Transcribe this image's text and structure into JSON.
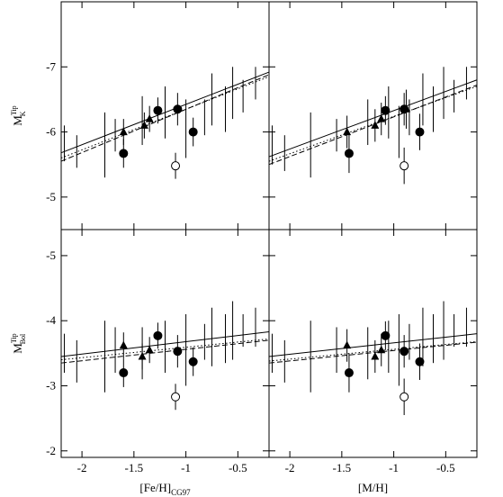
{
  "chart_data": [
    {
      "type": "scatter",
      "ylabel": {
        "text": "M",
        "sub": "K",
        "sup": "Tip"
      },
      "xlim": [
        -2.2,
        -0.2
      ],
      "ylim": [
        -4.5,
        -8
      ],
      "xticks": [
        -2,
        -1.5,
        -1,
        -0.5
      ],
      "yticks": [
        -7,
        -6,
        -5
      ],
      "points": {
        "filled": {
          "x": [
            -1.6,
            -1.27,
            -1.08,
            -0.93
          ],
          "values": [
            -5.67,
            -6.33,
            -6.35,
            -6.0
          ],
          "errors": [
            0.22,
            0.2,
            0.25,
            0.22
          ]
        },
        "open": {
          "x": [
            -1.1
          ],
          "values": [
            -5.48
          ],
          "errors": [
            0.2
          ]
        },
        "triangles": {
          "x": [
            -1.6,
            -1.4,
            -1.35
          ],
          "values": [
            -6.0,
            -6.1,
            -6.2
          ],
          "errors": [
            0.2,
            0.2,
            0.2
          ]
        }
      },
      "bars": {
        "x": [
          -2.17,
          -2.05,
          -1.78,
          -1.68,
          -1.42,
          -1.2,
          -1.0,
          -0.82,
          -0.75,
          -0.62,
          -0.55,
          -0.45,
          -0.33
        ],
        "low": [
          -6.1,
          -5.95,
          -6.3,
          -6.2,
          -6.55,
          -6.7,
          -6.5,
          -6.5,
          -6.9,
          -6.7,
          -7.0,
          -6.8,
          -7.0
        ],
        "high": [
          -5.55,
          -5.45,
          -5.3,
          -5.7,
          -5.8,
          -5.9,
          -5.6,
          -5.95,
          -6.1,
          -6.0,
          -6.2,
          -6.3,
          -6.5
        ]
      },
      "lines": [
        {
          "style": "solid",
          "x": [
            -2.2,
            -0.2
          ],
          "values": [
            -5.68,
            -6.92
          ]
        },
        {
          "style": "dashed",
          "x": [
            -2.2,
            -0.2
          ],
          "values": [
            -5.55,
            -6.88
          ]
        },
        {
          "style": "dotted",
          "x": [
            -2.2,
            -0.2
          ],
          "values": [
            -5.6,
            -6.85
          ]
        }
      ]
    },
    {
      "type": "scatter",
      "xlim": [
        -2.2,
        -0.2
      ],
      "ylim": [
        -4.5,
        -8
      ],
      "xticks": [
        -2,
        -1.5,
        -1,
        -0.5
      ],
      "yticks": [
        -7,
        -6,
        -5
      ],
      "points": {
        "filled": {
          "x": [
            -1.43,
            -1.08,
            -0.9,
            -0.75
          ],
          "values": [
            -5.67,
            -6.33,
            -6.35,
            -6.0
          ],
          "errors": [
            0.3,
            0.22,
            0.25,
            0.28
          ]
        },
        "open": {
          "x": [
            -0.9
          ],
          "values": [
            -5.48
          ],
          "errors": [
            0.28
          ]
        },
        "triangles": {
          "x": [
            -1.45,
            -1.18,
            -1.12,
            -0.88
          ],
          "values": [
            -6.0,
            -6.1,
            -6.2,
            -6.35
          ],
          "errors": [
            0.25,
            0.25,
            0.25,
            0.3
          ]
        }
      },
      "bars": {
        "x": [
          -2.17,
          -2.05,
          -1.8,
          -1.55,
          -1.25,
          -1.05,
          -0.95,
          -0.85,
          -0.72,
          -0.62,
          -0.52,
          -0.42,
          -0.3
        ],
        "low": [
          -6.1,
          -5.95,
          -6.3,
          -6.2,
          -6.5,
          -6.7,
          -6.4,
          -6.5,
          -6.9,
          -6.7,
          -7.0,
          -6.8,
          -7.0
        ],
        "high": [
          -5.5,
          -5.4,
          -5.3,
          -5.7,
          -5.8,
          -5.9,
          -5.6,
          -5.95,
          -6.1,
          -6.0,
          -6.2,
          -6.3,
          -6.5
        ]
      },
      "lines": [
        {
          "style": "solid",
          "x": [
            -2.2,
            -0.2
          ],
          "values": [
            -5.62,
            -6.8
          ]
        },
        {
          "style": "dashed",
          "x": [
            -2.2,
            -0.2
          ],
          "values": [
            -5.5,
            -6.72
          ]
        },
        {
          "style": "dotted",
          "x": [
            -2.2,
            -0.2
          ],
          "values": [
            -5.55,
            -6.7
          ]
        }
      ]
    },
    {
      "type": "scatter",
      "xlabel": {
        "text": "[Fe/H]",
        "sub": "CG97"
      },
      "ylabel": {
        "text": "M",
        "sub": "Bol",
        "sup": "Tip"
      },
      "xlim": [
        -2.2,
        -0.2
      ],
      "ylim": [
        -1.9,
        -5.4
      ],
      "xticks": [
        -2,
        -1.5,
        -1,
        -0.5
      ],
      "yticks": [
        -5,
        -4,
        -3,
        -2
      ],
      "points": {
        "filled": {
          "x": [
            -1.6,
            -1.27,
            -1.08,
            -0.93
          ],
          "values": [
            -3.2,
            -3.77,
            -3.53,
            -3.37
          ],
          "errors": [
            0.22,
            0.2,
            0.25,
            0.22
          ]
        },
        "open": {
          "x": [
            -1.1
          ],
          "values": [
            -2.83
          ],
          "errors": [
            0.2
          ]
        },
        "triangles": {
          "x": [
            -1.6,
            -1.42,
            -1.35
          ],
          "values": [
            -3.62,
            -3.45,
            -3.55
          ],
          "errors": [
            0.2,
            0.2,
            0.2
          ]
        }
      },
      "bars": {
        "x": [
          -2.17,
          -2.05,
          -1.78,
          -1.68,
          -1.42,
          -1.2,
          -1.0,
          -0.82,
          -0.75,
          -0.62,
          -0.55,
          -0.45,
          -0.33
        ],
        "low": [
          -3.8,
          -3.7,
          -4.0,
          -3.9,
          -3.9,
          -4.0,
          -4.1,
          -3.95,
          -4.2,
          -4.1,
          -4.3,
          -4.1,
          -4.2
        ],
        "high": [
          -3.2,
          -3.05,
          -2.9,
          -3.2,
          -3.1,
          -3.2,
          -3.0,
          -3.4,
          -3.3,
          -3.35,
          -3.4,
          -3.6,
          -3.6
        ]
      },
      "lines": [
        {
          "style": "solid",
          "x": [
            -2.2,
            -0.2
          ],
          "values": [
            -3.45,
            -3.83
          ]
        },
        {
          "style": "dashed",
          "x": [
            -2.2,
            -0.2
          ],
          "values": [
            -3.35,
            -3.7
          ]
        },
        {
          "style": "dotted",
          "x": [
            -2.2,
            -0.2
          ],
          "values": [
            -3.4,
            -3.72
          ]
        }
      ]
    },
    {
      "type": "scatter",
      "xlabel": {
        "text": "[M/H]"
      },
      "xlim": [
        -2.2,
        -0.2
      ],
      "ylim": [
        -1.9,
        -5.4
      ],
      "xticks": [
        -2,
        -1.5,
        -1,
        -0.5
      ],
      "yticks": [
        -5,
        -4,
        -3,
        -2
      ],
      "points": {
        "filled": {
          "x": [
            -1.43,
            -1.08,
            -0.9,
            -0.75
          ],
          "values": [
            -3.2,
            -3.77,
            -3.53,
            -3.37
          ],
          "errors": [
            0.3,
            0.22,
            0.25,
            0.28
          ]
        },
        "open": {
          "x": [
            -0.9
          ],
          "values": [
            -2.83
          ],
          "errors": [
            0.28
          ]
        },
        "triangles": {
          "x": [
            -1.45,
            -1.18,
            -1.12
          ],
          "values": [
            -3.62,
            -3.45,
            -3.55
          ],
          "errors": [
            0.25,
            0.25,
            0.25
          ]
        }
      },
      "bars": {
        "x": [
          -2.17,
          -2.05,
          -1.8,
          -1.55,
          -1.25,
          -1.05,
          -0.95,
          -0.85,
          -0.72,
          -0.62,
          -0.52,
          -0.42,
          -0.3
        ],
        "low": [
          -3.8,
          -3.7,
          -4.0,
          -3.9,
          -3.9,
          -4.0,
          -4.1,
          -3.95,
          -4.2,
          -4.1,
          -4.3,
          -4.1,
          -4.2
        ],
        "high": [
          -3.2,
          -3.05,
          -2.9,
          -3.2,
          -3.1,
          -3.2,
          -3.0,
          -3.4,
          -3.3,
          -3.35,
          -3.4,
          -3.6,
          -3.6
        ]
      },
      "lines": [
        {
          "style": "solid",
          "x": [
            -2.2,
            -0.2
          ],
          "values": [
            -3.45,
            -3.8
          ]
        },
        {
          "style": "dashed",
          "x": [
            -2.2,
            -0.2
          ],
          "values": [
            -3.35,
            -3.67
          ]
        },
        {
          "style": "dotted",
          "x": [
            -2.2,
            -0.2
          ],
          "values": [
            -3.38,
            -3.68
          ]
        }
      ]
    }
  ]
}
